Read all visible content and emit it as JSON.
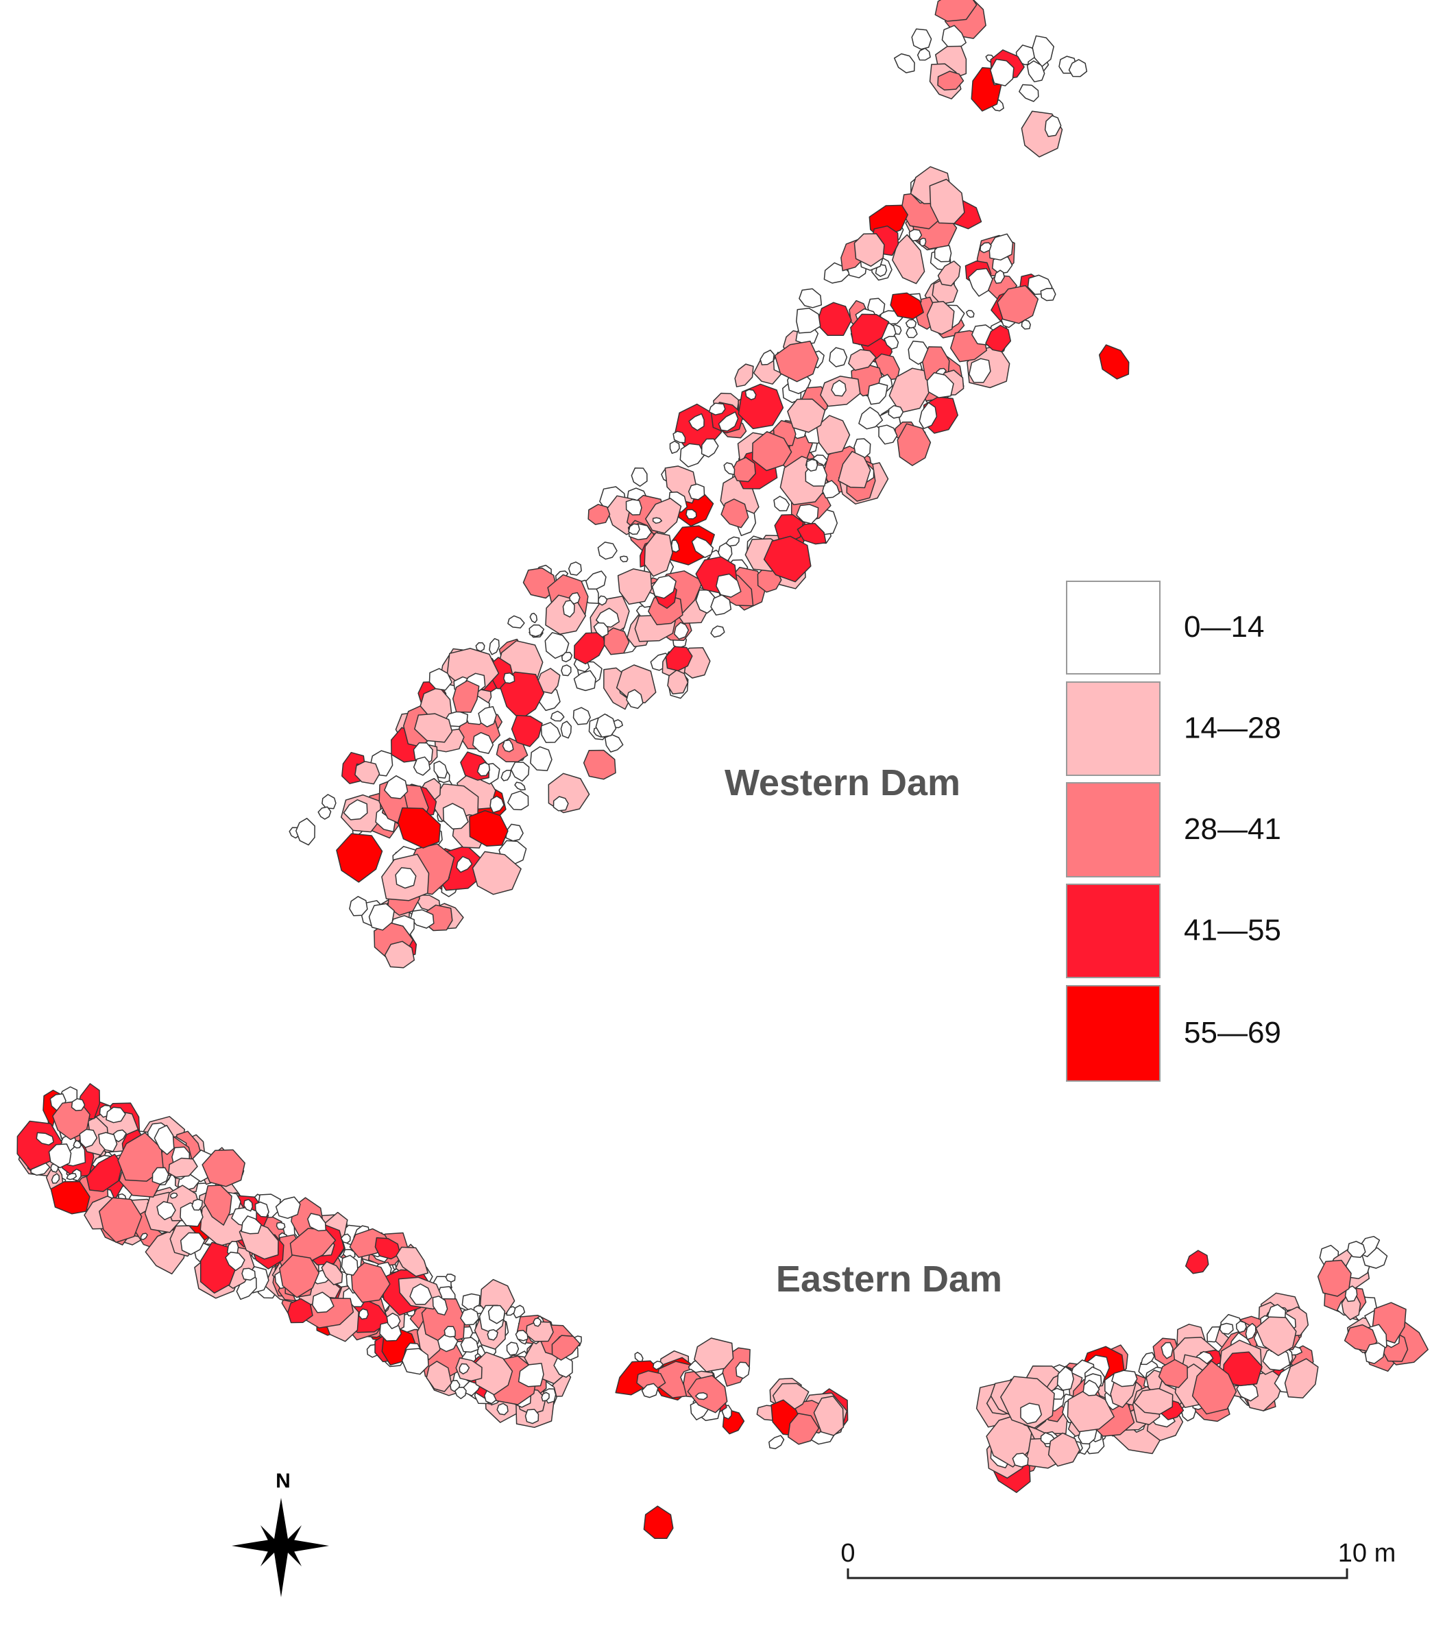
{
  "labels": {
    "western": "Western Dam",
    "eastern": "Eastern Dam"
  },
  "legend": {
    "items": [
      {
        "label": "0—14",
        "color": "#ffffff"
      },
      {
        "label": "14—28",
        "color": "#ffbcbf"
      },
      {
        "label": "28—41",
        "color": "#ff7a80"
      },
      {
        "label": "41—55",
        "color": "#ff1a30"
      },
      {
        "label": "55—69",
        "color": "#ff0000"
      }
    ]
  },
  "compass": {
    "label": "N"
  },
  "scale_bar": {
    "start": "0",
    "end": "10 m"
  }
}
